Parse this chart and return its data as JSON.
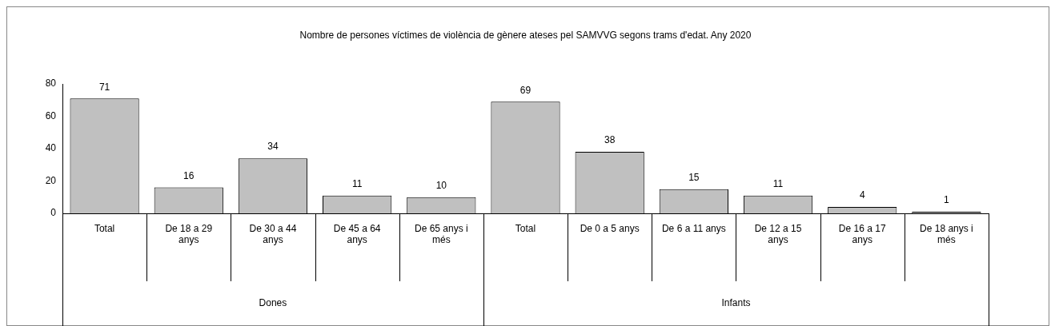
{
  "chart_data": {
    "type": "bar",
    "title": "Nombre de persones víctimes de violència de gènere ateses pel SAMVVG segons trams d'edat. Any 2020",
    "categories": [
      "Total",
      "De 18 a 29 anys",
      "De 30 a 44 anys",
      "De 45 a 64 anys",
      "De 65 anys i més",
      "Total",
      "De 0 a 5 anys",
      "De 6 a 11 anys",
      "De 12 a 15 anys",
      "De 16 a 17 anys",
      "De 18 anys i més"
    ],
    "values": [
      71,
      16,
      34,
      11,
      10,
      69,
      38,
      15,
      11,
      4,
      1
    ],
    "color": "#c0c0c0",
    "ylim": [
      0,
      80
    ],
    "yticks": [
      0,
      20,
      40,
      60,
      80
    ],
    "grid": false,
    "legend": false,
    "data_labels": true,
    "annotations": [
      "Dones",
      "Infants"
    ]
  }
}
